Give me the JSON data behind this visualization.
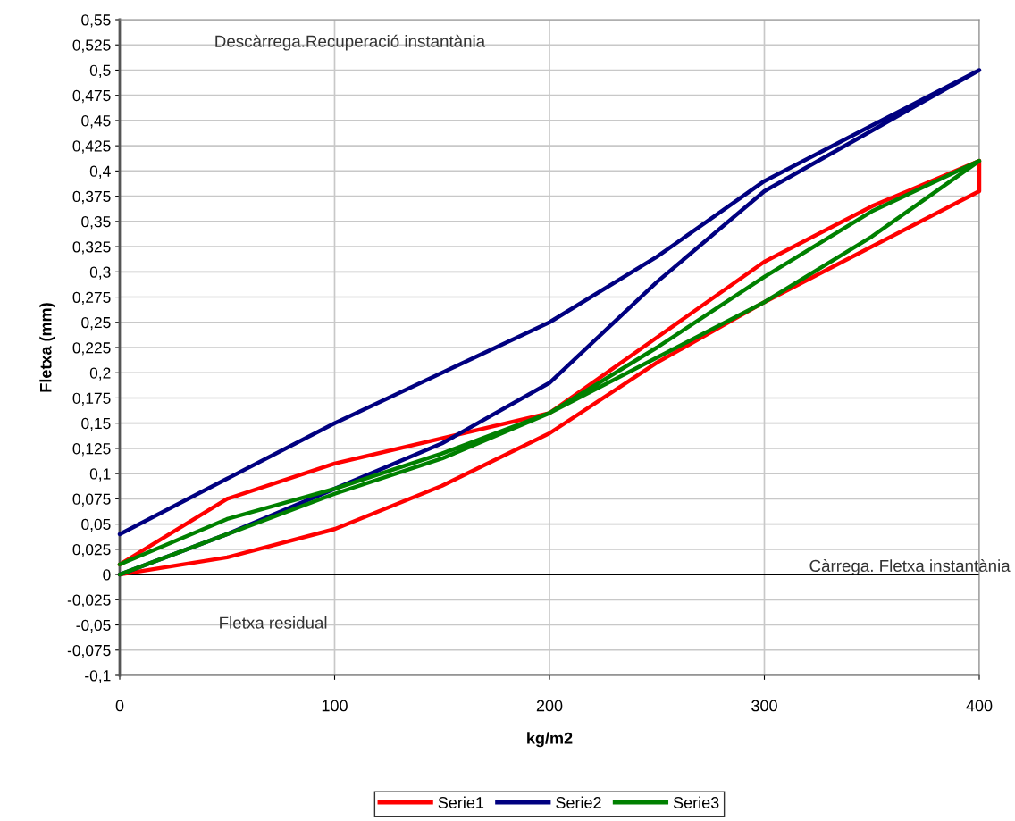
{
  "chart_data": {
    "type": "line",
    "xlabel": "kg/m2",
    "ylabel": "Fletxa (mm)",
    "annotations": [
      "Descàrrega.Recuperació instantània",
      "Càrrega. Fletxa instantània",
      "Fletxa residual"
    ],
    "series": [
      {
        "name": "Serie1",
        "color": "#ff0000",
        "x": [
          0,
          50,
          100,
          150,
          200,
          250,
          300,
          350,
          400,
          400,
          350,
          300,
          250,
          200,
          150,
          100,
          50,
          0
        ],
        "values": [
          0,
          0.017,
          0.045,
          0.088,
          0.14,
          0.21,
          0.27,
          0.325,
          0.38,
          0.41,
          0.365,
          0.31,
          0.235,
          0.16,
          0.135,
          0.11,
          0.075,
          0.01
        ]
      },
      {
        "name": "Serie2",
        "color": "#000080",
        "x": [
          0,
          50,
          100,
          150,
          200,
          250,
          300,
          350,
          400,
          350,
          300,
          250,
          200,
          150,
          100,
          50,
          0
        ],
        "values": [
          0,
          0.04,
          0.085,
          0.13,
          0.19,
          0.29,
          0.38,
          0.44,
          0.5,
          0.445,
          0.39,
          0.315,
          0.25,
          0.2,
          0.15,
          0.095,
          0.04
        ]
      },
      {
        "name": "Serie3",
        "color": "#008000",
        "x": [
          0,
          50,
          100,
          150,
          200,
          250,
          300,
          350,
          400,
          350,
          300,
          250,
          200,
          150,
          100,
          50,
          0
        ],
        "values": [
          0,
          0.04,
          0.08,
          0.115,
          0.16,
          0.215,
          0.27,
          0.335,
          0.41,
          0.36,
          0.295,
          0.225,
          0.16,
          0.12,
          0.085,
          0.055,
          0.01
        ]
      }
    ],
    "xlim": [
      0,
      400
    ],
    "xticks": [
      0,
      100,
      200,
      300,
      400
    ],
    "ylim": [
      -0.1,
      0.55
    ],
    "yticks": [
      {
        "value": -0.1,
        "label": "-0,1"
      },
      {
        "value": -0.075,
        "label": "-0,075"
      },
      {
        "value": -0.05,
        "label": "-0,05"
      },
      {
        "value": -0.025,
        "label": "-0,025"
      },
      {
        "value": 0,
        "label": "0"
      },
      {
        "value": 0.025,
        "label": "0,025"
      },
      {
        "value": 0.05,
        "label": "0,05"
      },
      {
        "value": 0.075,
        "label": "0,075"
      },
      {
        "value": 0.1,
        "label": "0,1"
      },
      {
        "value": 0.125,
        "label": "0,125"
      },
      {
        "value": 0.15,
        "label": "0,15"
      },
      {
        "value": 0.175,
        "label": "0,175"
      },
      {
        "value": 0.2,
        "label": "0,2"
      },
      {
        "value": 0.225,
        "label": "0,225"
      },
      {
        "value": 0.25,
        "label": "0,25"
      },
      {
        "value": 0.275,
        "label": "0,275"
      },
      {
        "value": 0.3,
        "label": "0,3"
      },
      {
        "value": 0.325,
        "label": "0,325"
      },
      {
        "value": 0.35,
        "label": "0,35"
      },
      {
        "value": 0.375,
        "label": "0,375"
      },
      {
        "value": 0.4,
        "label": "0,4"
      },
      {
        "value": 0.425,
        "label": "0,425"
      },
      {
        "value": 0.45,
        "label": "0,45"
      },
      {
        "value": 0.475,
        "label": "0,475"
      },
      {
        "value": 0.5,
        "label": "0,5"
      },
      {
        "value": 0.525,
        "label": "0,525"
      },
      {
        "value": 0.55,
        "label": "0,55"
      }
    ],
    "ref_lines": [
      {
        "axis": "y",
        "value": 0,
        "color": "#000000"
      }
    ],
    "grid": true,
    "legend": "bottom",
    "marker": "none",
    "line_style": "solid"
  }
}
